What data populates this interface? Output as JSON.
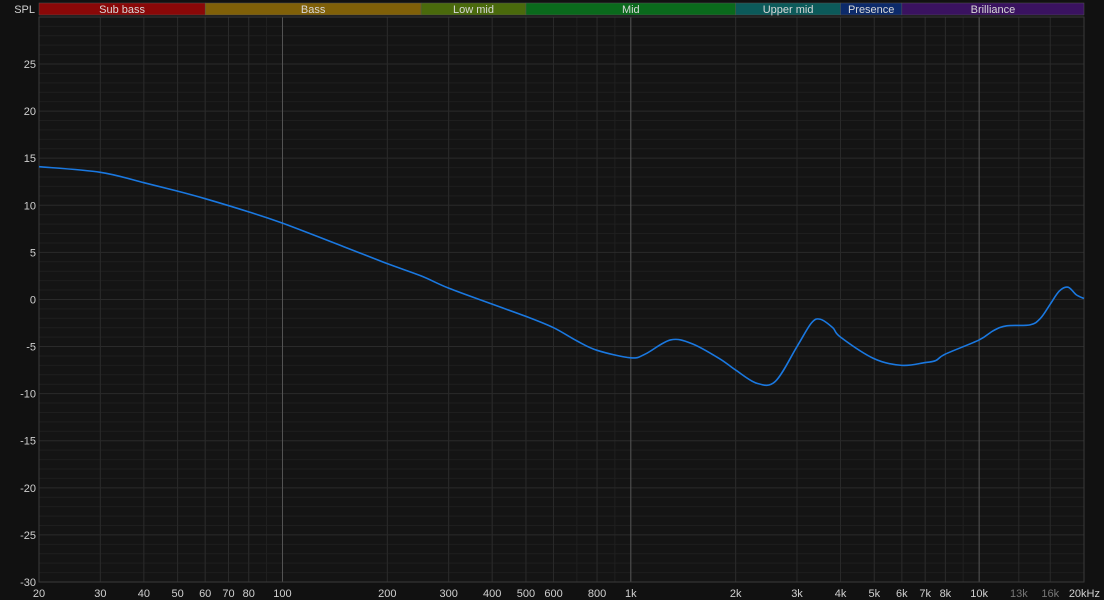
{
  "chart_data": {
    "type": "line",
    "ylabel": "SPL",
    "x_scale": "log",
    "xlim": [
      20,
      20000
    ],
    "ylim": [
      -30,
      30
    ],
    "grid": true,
    "y_ticks": [
      25,
      20,
      15,
      10,
      5,
      0,
      -5,
      -10,
      -15,
      -20,
      -25,
      -30
    ],
    "x_ticks": [
      {
        "f": 20,
        "label": "20"
      },
      {
        "f": 30,
        "label": "30"
      },
      {
        "f": 40,
        "label": "40"
      },
      {
        "f": 50,
        "label": "50"
      },
      {
        "f": 60,
        "label": "60"
      },
      {
        "f": 70,
        "label": "70"
      },
      {
        "f": 80,
        "label": "80"
      },
      {
        "f": 100,
        "label": "100"
      },
      {
        "f": 200,
        "label": "200"
      },
      {
        "f": 300,
        "label": "300"
      },
      {
        "f": 400,
        "label": "400"
      },
      {
        "f": 500,
        "label": "500"
      },
      {
        "f": 600,
        "label": "600"
      },
      {
        "f": 800,
        "label": "800"
      },
      {
        "f": 1000,
        "label": "1k"
      },
      {
        "f": 2000,
        "label": "2k"
      },
      {
        "f": 3000,
        "label": "3k"
      },
      {
        "f": 4000,
        "label": "4k"
      },
      {
        "f": 5000,
        "label": "5k"
      },
      {
        "f": 6000,
        "label": "6k"
      },
      {
        "f": 7000,
        "label": "7k"
      },
      {
        "f": 8000,
        "label": "8k"
      },
      {
        "f": 10000,
        "label": "10k"
      },
      {
        "f": 13000,
        "label": "13k",
        "dim": true
      },
      {
        "f": 16000,
        "label": "16k",
        "dim": true
      },
      {
        "f": 20000,
        "label": "20kHz"
      }
    ],
    "bands": [
      {
        "label": "Sub bass",
        "from": 20,
        "to": 60,
        "color": "#8a0808"
      },
      {
        "label": "Bass",
        "from": 60,
        "to": 250,
        "color": "#806008"
      },
      {
        "label": "Low mid",
        "from": 250,
        "to": 500,
        "color": "#4a6a0c"
      },
      {
        "label": "Mid",
        "from": 500,
        "to": 2000,
        "color": "#0a6a1c"
      },
      {
        "label": "Upper mid",
        "from": 2000,
        "to": 4000,
        "color": "#0c5a5a"
      },
      {
        "label": "Presence",
        "from": 4000,
        "to": 6000,
        "color": "#0c2a6a"
      },
      {
        "label": "Brilliance",
        "from": 6000,
        "to": 20000,
        "color": "#3a1260"
      }
    ],
    "series": [
      {
        "color": "#1a78e0",
        "x": [
          20,
          30,
          40,
          50,
          60,
          80,
          100,
          150,
          200,
          250,
          300,
          400,
          500,
          600,
          700,
          800,
          1000,
          1100,
          1300,
          1500,
          1800,
          2000,
          2300,
          2600,
          3000,
          3300,
          3500,
          3800,
          4000,
          5000,
          6000,
          7000,
          7500,
          8000,
          10000,
          11000,
          12000,
          14000,
          15000,
          16000,
          17000,
          18000,
          19000,
          20000
        ],
        "y": [
          14.1,
          13.5,
          12.4,
          11.5,
          10.7,
          9.3,
          8.1,
          5.6,
          3.8,
          2.5,
          1.2,
          -0.5,
          -1.8,
          -3.0,
          -4.4,
          -5.4,
          -6.2,
          -5.8,
          -4.3,
          -4.7,
          -6.3,
          -7.5,
          -8.9,
          -8.7,
          -5.0,
          -2.5,
          -2.1,
          -3.0,
          -4.0,
          -6.3,
          -7.0,
          -6.7,
          -6.5,
          -5.8,
          -4.3,
          -3.3,
          -2.8,
          -2.7,
          -2.0,
          -0.5,
          0.9,
          1.3,
          0.5,
          0.1
        ]
      }
    ]
  },
  "colors": {
    "background": "#111111",
    "grid": "#2a2a2a",
    "grid_major": "#555555",
    "text": "#d0d0d0",
    "text_dim": "#777777"
  }
}
